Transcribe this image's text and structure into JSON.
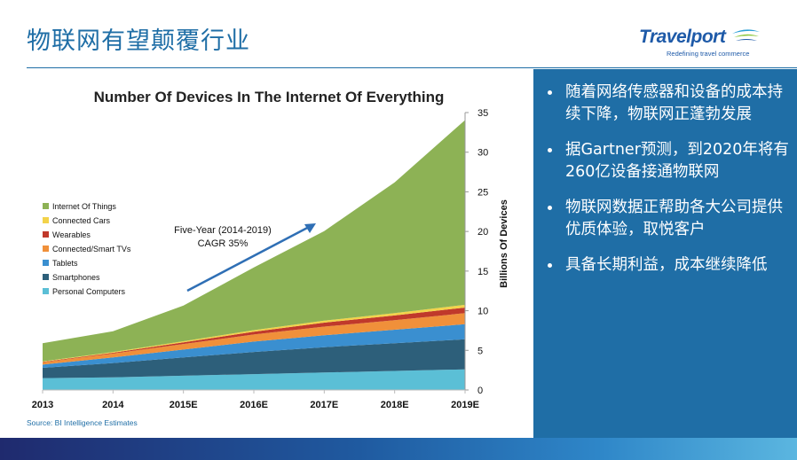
{
  "slide": {
    "title": "物联网有望颠覆行业",
    "source": "Source: BI Intelligence Estimates"
  },
  "logo": {
    "name": "Travelport",
    "tagline": "Redefining travel commerce"
  },
  "bullets": [
    "随着网络传感器和设备的成本持续下降，物联网正蓬勃发展",
    "据Gartner预测，到2020年将有260亿设备接通物联网",
    "物联网数据正帮助各大公司提供优质体验，取悦客户",
    "具备长期利益，成本继续降低"
  ],
  "colors": {
    "brand_blue": "#1f6ea6",
    "panel_blue": "#1f6ea6"
  },
  "chart_data": {
    "type": "area",
    "stacked": true,
    "title": "Number Of Devices In The Internet Of Everything",
    "xlabel": "",
    "ylabel": "Billions Of Devices",
    "ylim": [
      0,
      35
    ],
    "yticks": [
      0,
      5,
      10,
      15,
      20,
      25,
      30,
      35
    ],
    "categories": [
      "2013",
      "2014",
      "2015E",
      "2016E",
      "2017E",
      "2018E",
      "2019E"
    ],
    "series": [
      {
        "name": "Personal Computers",
        "color": "#5bbfd6",
        "values": [
          1.5,
          1.6,
          1.8,
          2.0,
          2.2,
          2.4,
          2.6
        ]
      },
      {
        "name": "Smartphones",
        "color": "#2d5f7a",
        "values": [
          1.3,
          1.8,
          2.3,
          2.8,
          3.2,
          3.5,
          3.8
        ]
      },
      {
        "name": "Tablets",
        "color": "#3a8fd0",
        "values": [
          0.4,
          0.7,
          1.0,
          1.3,
          1.5,
          1.7,
          1.9
        ]
      },
      {
        "name": "Connected/Smart TVs",
        "color": "#f0903a",
        "values": [
          0.3,
          0.5,
          0.7,
          0.9,
          1.1,
          1.2,
          1.4
        ]
      },
      {
        "name": "Wearables",
        "color": "#c0392b",
        "values": [
          0.05,
          0.1,
          0.2,
          0.35,
          0.5,
          0.6,
          0.7
        ]
      },
      {
        "name": "Connected Cars",
        "color": "#f3d34a",
        "values": [
          0.05,
          0.1,
          0.15,
          0.2,
          0.25,
          0.3,
          0.35
        ]
      },
      {
        "name": "Internet Of Things",
        "color": "#8db255",
        "values": [
          2.3,
          2.6,
          4.5,
          7.9,
          11.3,
          16.5,
          23.3
        ]
      }
    ],
    "legend_position": "left",
    "annotation": {
      "lines": [
        "Five-Year (2014-2019)",
        "CAGR 35%"
      ],
      "arrow": true
    }
  }
}
